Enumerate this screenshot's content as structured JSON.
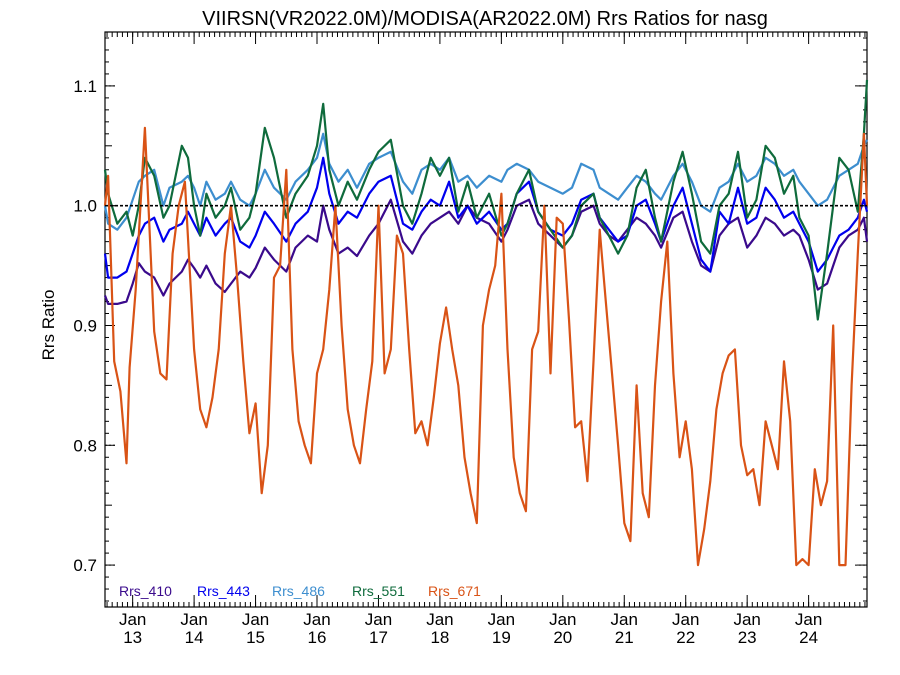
{
  "chart_data": {
    "type": "line",
    "title": "VIIRSN(VR2022.0M)/MODISA(AR2022.0M)  Rrs Ratios for nasg",
    "xlabel": "",
    "ylabel": "Rrs Ratio",
    "xlim": [
      2012.55,
      2024.95
    ],
    "ylim": [
      0.665,
      1.145
    ],
    "yticks": [
      {
        "value": 0.7,
        "label": "0.7"
      },
      {
        "value": 0.8,
        "label": "0.8"
      },
      {
        "value": 0.9,
        "label": "0.9"
      },
      {
        "value": 1.0,
        "label": "1.0"
      },
      {
        "value": 1.1,
        "label": "1.1"
      }
    ],
    "xticks": [
      {
        "value": 2013,
        "top": "Jan",
        "bottom": "13"
      },
      {
        "value": 2014,
        "top": "Jan",
        "bottom": "14"
      },
      {
        "value": 2015,
        "top": "Jan",
        "bottom": "15"
      },
      {
        "value": 2016,
        "top": "Jan",
        "bottom": "16"
      },
      {
        "value": 2017,
        "top": "Jan",
        "bottom": "17"
      },
      {
        "value": 2018,
        "top": "Jan",
        "bottom": "18"
      },
      {
        "value": 2019,
        "top": "Jan",
        "bottom": "19"
      },
      {
        "value": 2020,
        "top": "Jan",
        "bottom": "20"
      },
      {
        "value": 2021,
        "top": "Jan",
        "bottom": "21"
      },
      {
        "value": 2022,
        "top": "Jan",
        "bottom": "22"
      },
      {
        "value": 2023,
        "top": "Jan",
        "bottom": "23"
      },
      {
        "value": 2024,
        "top": "Jan",
        "bottom": "24"
      }
    ],
    "reference_line": 1.0,
    "legend_position": "bottom-left",
    "series": [
      {
        "name": "Rrs_410",
        "color": "#3a0a8c",
        "x": [
          2012.55,
          2012.6,
          2012.75,
          2012.9,
          2013.0,
          2013.1,
          2013.2,
          2013.35,
          2013.5,
          2013.6,
          2013.8,
          2013.9,
          2014.0,
          2014.1,
          2014.2,
          2014.35,
          2014.5,
          2014.6,
          2014.75,
          2014.9,
          2015.0,
          2015.15,
          2015.3,
          2015.5,
          2015.65,
          2015.85,
          2016.0,
          2016.1,
          2016.2,
          2016.35,
          2016.5,
          2016.65,
          2016.85,
          2017.0,
          2017.2,
          2017.4,
          2017.55,
          2017.7,
          2017.85,
          2018.0,
          2018.15,
          2018.3,
          2018.45,
          2018.6,
          2018.8,
          2019.0,
          2019.1,
          2019.25,
          2019.45,
          2019.6,
          2019.8,
          2020.0,
          2020.15,
          2020.3,
          2020.5,
          2020.6,
          2020.75,
          2020.9,
          2021.05,
          2021.2,
          2021.35,
          2021.5,
          2021.6,
          2021.8,
          2021.95,
          2022.1,
          2022.25,
          2022.4,
          2022.55,
          2022.7,
          2022.85,
          2023.0,
          2023.15,
          2023.3,
          2023.45,
          2023.6,
          2023.75,
          2023.85,
          2024.0,
          2024.15,
          2024.3,
          2024.5,
          2024.65,
          2024.8,
          2024.9,
          2024.95
        ],
        "values": [
          0.925,
          0.918,
          0.918,
          0.92,
          0.935,
          0.952,
          0.945,
          0.94,
          0.925,
          0.935,
          0.945,
          0.955,
          0.948,
          0.94,
          0.95,
          0.935,
          0.928,
          0.935,
          0.945,
          0.94,
          0.948,
          0.965,
          0.955,
          0.945,
          0.965,
          0.975,
          0.97,
          1.0,
          0.98,
          0.96,
          0.965,
          0.958,
          0.975,
          0.985,
          1.005,
          0.97,
          0.96,
          0.975,
          0.985,
          0.99,
          0.995,
          0.985,
          1.0,
          0.99,
          0.985,
          0.97,
          0.98,
          1.0,
          1.005,
          0.985,
          0.975,
          0.965,
          0.975,
          0.995,
          1.0,
          0.985,
          0.975,
          0.97,
          0.98,
          0.99,
          0.985,
          0.975,
          0.965,
          0.99,
          0.995,
          0.97,
          0.95,
          0.945,
          0.975,
          0.985,
          0.99,
          0.965,
          0.975,
          0.99,
          0.985,
          0.975,
          0.98,
          0.975,
          0.955,
          0.93,
          0.935,
          0.965,
          0.975,
          0.98,
          0.99,
          0.97
        ]
      },
      {
        "name": "Rrs_443",
        "color": "#0000ee",
        "x": [
          2012.55,
          2012.6,
          2012.75,
          2012.9,
          2013.0,
          2013.1,
          2013.2,
          2013.35,
          2013.5,
          2013.6,
          2013.8,
          2013.9,
          2014.0,
          2014.1,
          2014.2,
          2014.35,
          2014.5,
          2014.6,
          2014.75,
          2014.9,
          2015.0,
          2015.15,
          2015.3,
          2015.5,
          2015.65,
          2015.85,
          2016.0,
          2016.1,
          2016.2,
          2016.35,
          2016.5,
          2016.65,
          2016.85,
          2017.0,
          2017.2,
          2017.4,
          2017.55,
          2017.7,
          2017.85,
          2018.0,
          2018.15,
          2018.3,
          2018.45,
          2018.6,
          2018.8,
          2019.0,
          2019.1,
          2019.25,
          2019.45,
          2019.6,
          2019.8,
          2020.0,
          2020.15,
          2020.3,
          2020.5,
          2020.6,
          2020.75,
          2020.9,
          2021.05,
          2021.2,
          2021.35,
          2021.5,
          2021.6,
          2021.8,
          2021.95,
          2022.1,
          2022.25,
          2022.4,
          2022.55,
          2022.7,
          2022.85,
          2023.0,
          2023.15,
          2023.3,
          2023.45,
          2023.6,
          2023.75,
          2023.85,
          2024.0,
          2024.15,
          2024.3,
          2024.5,
          2024.65,
          2024.8,
          2024.9,
          2024.95
        ],
        "values": [
          0.96,
          0.94,
          0.94,
          0.945,
          0.96,
          0.975,
          0.985,
          0.99,
          0.97,
          0.98,
          0.985,
          0.995,
          0.985,
          0.975,
          0.99,
          0.975,
          0.985,
          0.99,
          0.97,
          0.965,
          0.975,
          0.995,
          0.985,
          0.97,
          0.985,
          0.995,
          1.015,
          1.04,
          1.01,
          0.985,
          0.995,
          0.99,
          1.01,
          1.02,
          1.025,
          0.985,
          0.98,
          0.995,
          1.005,
          1.0,
          1.02,
          0.99,
          1.0,
          0.985,
          0.995,
          0.98,
          0.985,
          1.01,
          1.02,
          0.995,
          0.98,
          0.975,
          0.985,
          1.005,
          1.01,
          0.99,
          0.98,
          0.97,
          0.975,
          1.0,
          1.005,
          0.985,
          0.97,
          1.0,
          1.015,
          0.985,
          0.955,
          0.945,
          0.995,
          0.985,
          1.015,
          0.985,
          0.99,
          1.015,
          1.005,
          0.99,
          0.995,
          0.985,
          0.97,
          0.945,
          0.955,
          0.975,
          0.98,
          0.99,
          1.005,
          0.995
        ]
      },
      {
        "name": "Rrs_486",
        "color": "#3d8ecf",
        "x": [
          2012.55,
          2012.6,
          2012.75,
          2012.9,
          2013.0,
          2013.1,
          2013.2,
          2013.35,
          2013.5,
          2013.6,
          2013.8,
          2013.9,
          2014.0,
          2014.1,
          2014.2,
          2014.35,
          2014.5,
          2014.6,
          2014.75,
          2014.9,
          2015.0,
          2015.15,
          2015.3,
          2015.5,
          2015.65,
          2015.85,
          2016.0,
          2016.1,
          2016.2,
          2016.35,
          2016.5,
          2016.65,
          2016.85,
          2017.0,
          2017.2,
          2017.4,
          2017.55,
          2017.7,
          2017.85,
          2018.0,
          2018.15,
          2018.3,
          2018.45,
          2018.6,
          2018.8,
          2019.0,
          2019.1,
          2019.25,
          2019.45,
          2019.6,
          2019.8,
          2020.0,
          2020.15,
          2020.3,
          2020.5,
          2020.6,
          2020.75,
          2020.9,
          2021.05,
          2021.2,
          2021.35,
          2021.5,
          2021.6,
          2021.8,
          2021.95,
          2022.1,
          2022.25,
          2022.4,
          2022.55,
          2022.7,
          2022.85,
          2023.0,
          2023.15,
          2023.3,
          2023.45,
          2023.6,
          2023.75,
          2023.85,
          2024.0,
          2024.15,
          2024.3,
          2024.5,
          2024.65,
          2024.8,
          2024.9,
          2024.95
        ],
        "values": [
          1.0,
          0.985,
          0.98,
          0.99,
          1.005,
          1.02,
          1.025,
          1.03,
          1.0,
          1.015,
          1.02,
          1.025,
          1.015,
          1.0,
          1.02,
          1.005,
          1.01,
          1.02,
          1.005,
          1.0,
          1.01,
          1.03,
          1.015,
          1.005,
          1.02,
          1.03,
          1.04,
          1.06,
          1.035,
          1.02,
          1.03,
          1.015,
          1.035,
          1.04,
          1.045,
          1.02,
          1.01,
          1.03,
          1.035,
          1.03,
          1.04,
          1.02,
          1.025,
          1.015,
          1.025,
          1.02,
          1.03,
          1.035,
          1.03,
          1.02,
          1.015,
          1.01,
          1.015,
          1.035,
          1.03,
          1.015,
          1.01,
          1.005,
          1.015,
          1.025,
          1.02,
          1.01,
          1.005,
          1.025,
          1.035,
          1.02,
          1.0,
          0.995,
          1.015,
          1.02,
          1.035,
          1.02,
          1.025,
          1.04,
          1.035,
          1.025,
          1.03,
          1.02,
          1.01,
          1.0,
          1.005,
          1.025,
          1.03,
          1.035,
          1.05,
          1.055
        ]
      },
      {
        "name": "Rrs_551",
        "color": "#0f6b3c",
        "x": [
          2012.55,
          2012.6,
          2012.75,
          2012.9,
          2013.0,
          2013.1,
          2013.2,
          2013.35,
          2013.5,
          2013.6,
          2013.8,
          2013.9,
          2014.0,
          2014.1,
          2014.2,
          2014.35,
          2014.5,
          2014.6,
          2014.75,
          2014.9,
          2015.0,
          2015.15,
          2015.3,
          2015.5,
          2015.65,
          2015.85,
          2016.0,
          2016.1,
          2016.2,
          2016.35,
          2016.5,
          2016.65,
          2016.85,
          2017.0,
          2017.2,
          2017.4,
          2017.55,
          2017.7,
          2017.85,
          2018.0,
          2018.15,
          2018.3,
          2018.45,
          2018.6,
          2018.8,
          2019.0,
          2019.1,
          2019.25,
          2019.45,
          2019.6,
          2019.8,
          2020.0,
          2020.15,
          2020.3,
          2020.5,
          2020.6,
          2020.75,
          2020.9,
          2021.05,
          2021.2,
          2021.35,
          2021.5,
          2021.6,
          2021.8,
          2021.95,
          2022.1,
          2022.25,
          2022.4,
          2022.55,
          2022.7,
          2022.85,
          2023.0,
          2023.15,
          2023.3,
          2023.45,
          2023.6,
          2023.75,
          2023.85,
          2024.0,
          2024.15,
          2024.3,
          2024.5,
          2024.65,
          2024.8,
          2024.9,
          2024.95
        ],
        "values": [
          1.03,
          1.01,
          0.985,
          0.995,
          0.975,
          1.0,
          1.04,
          1.025,
          0.99,
          1.0,
          1.05,
          1.04,
          1.0,
          0.975,
          1.01,
          0.99,
          1.0,
          1.015,
          0.98,
          0.99,
          1.01,
          1.065,
          1.04,
          0.99,
          1.01,
          1.025,
          1.05,
          1.085,
          1.03,
          1.0,
          1.02,
          1.005,
          1.03,
          1.045,
          1.055,
          1.0,
          0.985,
          1.01,
          1.04,
          1.025,
          1.04,
          0.995,
          1.02,
          0.99,
          1.01,
          0.975,
          0.985,
          1.01,
          1.03,
          0.995,
          0.98,
          0.965,
          0.975,
          1.0,
          1.01,
          0.99,
          0.975,
          0.96,
          0.975,
          1.015,
          1.03,
          0.99,
          0.97,
          1.02,
          1.045,
          1.01,
          0.97,
          0.96,
          1.0,
          1.01,
          1.045,
          0.99,
          1.005,
          1.05,
          1.04,
          1.01,
          1.025,
          0.99,
          0.975,
          0.905,
          0.96,
          1.04,
          1.03,
          0.995,
          1.06,
          1.105
        ]
      },
      {
        "name": "Rrs_671",
        "color": "#d95316",
        "x": [
          2012.55,
          2012.6,
          2012.7,
          2012.8,
          2012.9,
          2012.95,
          2013.05,
          2013.2,
          2013.35,
          2013.45,
          2013.55,
          2013.65,
          2013.75,
          2013.85,
          2014.0,
          2014.1,
          2014.2,
          2014.3,
          2014.4,
          2014.5,
          2014.6,
          2014.7,
          2014.8,
          2014.9,
          2015.0,
          2015.1,
          2015.2,
          2015.3,
          2015.4,
          2015.5,
          2015.6,
          2015.7,
          2015.8,
          2015.9,
          2016.0,
          2016.1,
          2016.2,
          2016.3,
          2016.4,
          2016.5,
          2016.6,
          2016.7,
          2016.8,
          2016.9,
          2017.0,
          2017.1,
          2017.2,
          2017.3,
          2017.4,
          2017.5,
          2017.6,
          2017.7,
          2017.8,
          2017.9,
          2018.0,
          2018.1,
          2018.2,
          2018.3,
          2018.4,
          2018.5,
          2018.6,
          2018.7,
          2018.8,
          2018.9,
          2019.0,
          2019.1,
          2019.2,
          2019.3,
          2019.4,
          2019.5,
          2019.6,
          2019.7,
          2019.8,
          2019.9,
          2020.0,
          2020.1,
          2020.2,
          2020.3,
          2020.4,
          2020.5,
          2020.6,
          2020.7,
          2020.8,
          2020.9,
          2021.0,
          2021.1,
          2021.2,
          2021.3,
          2021.4,
          2021.5,
          2021.6,
          2021.7,
          2021.8,
          2021.9,
          2022.0,
          2022.1,
          2022.2,
          2022.3,
          2022.4,
          2022.5,
          2022.6,
          2022.7,
          2022.8,
          2022.9,
          2023.0,
          2023.1,
          2023.2,
          2023.3,
          2023.4,
          2023.5,
          2023.6,
          2023.7,
          2023.8,
          2023.9,
          2024.0,
          2024.1,
          2024.2,
          2024.3,
          2024.4,
          2024.5,
          2024.6,
          2024.7,
          2024.8,
          2024.9,
          2024.95
        ],
        "values": [
          1.0,
          1.025,
          0.87,
          0.845,
          0.785,
          0.865,
          0.93,
          1.065,
          0.895,
          0.86,
          0.855,
          0.96,
          1.0,
          1.02,
          0.88,
          0.83,
          0.815,
          0.84,
          0.88,
          0.96,
          1.0,
          0.94,
          0.87,
          0.81,
          0.835,
          0.76,
          0.8,
          0.94,
          0.95,
          1.03,
          0.88,
          0.82,
          0.8,
          0.785,
          0.86,
          0.88,
          0.93,
          1.0,
          0.9,
          0.83,
          0.8,
          0.785,
          0.83,
          0.87,
          1.0,
          0.86,
          0.88,
          0.975,
          0.96,
          0.88,
          0.81,
          0.82,
          0.8,
          0.84,
          0.885,
          0.915,
          0.88,
          0.85,
          0.79,
          0.76,
          0.735,
          0.9,
          0.93,
          0.95,
          1.01,
          0.88,
          0.79,
          0.76,
          0.745,
          0.88,
          0.895,
          1.0,
          0.86,
          0.99,
          0.985,
          0.905,
          0.815,
          0.82,
          0.77,
          0.87,
          0.98,
          0.92,
          0.86,
          0.8,
          0.735,
          0.72,
          0.85,
          0.76,
          0.74,
          0.85,
          0.92,
          0.97,
          0.86,
          0.79,
          0.82,
          0.78,
          0.7,
          0.73,
          0.77,
          0.83,
          0.86,
          0.875,
          0.88,
          0.8,
          0.775,
          0.78,
          0.75,
          0.82,
          0.8,
          0.78,
          0.87,
          0.82,
          0.7,
          0.705,
          0.7,
          0.78,
          0.75,
          0.77,
          0.9,
          0.7,
          0.7,
          0.85,
          0.96,
          1.06,
          1.0
        ]
      }
    ]
  }
}
